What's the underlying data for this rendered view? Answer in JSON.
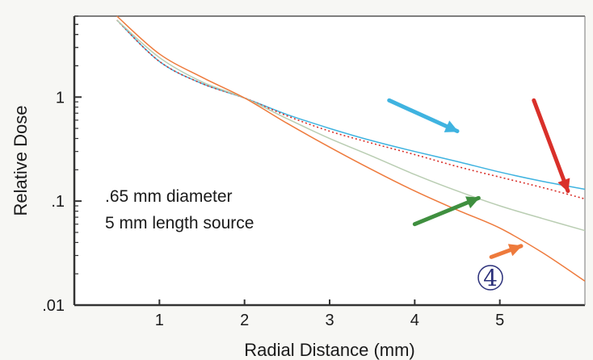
{
  "chart_data": {
    "type": "line",
    "xlabel": "Radial Distance (mm)",
    "ylabel": "Relative Dose",
    "xlim": [
      0,
      6
    ],
    "ylim": [
      0.01,
      6
    ],
    "yscale": "log",
    "x_ticks": [
      1,
      2,
      3,
      4,
      5
    ],
    "x_tick_labels": [
      "1",
      "2",
      "3",
      "4",
      "5"
    ],
    "y_ticks": [
      1,
      0.1,
      0.01
    ],
    "y_tick_labels": [
      "1",
      ".1",
      ".01"
    ],
    "grid": false,
    "annotations": [
      {
        "text": ".65 mm diameter"
      },
      {
        "text": "5 mm length source"
      },
      {
        "text": "4"
      }
    ],
    "series": [
      {
        "color": "#3fb3e0",
        "style": "solid",
        "points": [
          [
            0.5,
            5.5
          ],
          [
            1.0,
            2.2
          ],
          [
            1.5,
            1.35
          ],
          [
            2.0,
            0.98
          ],
          [
            2.5,
            0.68
          ],
          [
            3.0,
            0.5
          ],
          [
            3.5,
            0.38
          ],
          [
            4.0,
            0.3
          ],
          [
            4.5,
            0.24
          ],
          [
            5.0,
            0.19
          ],
          [
            5.5,
            0.155
          ],
          [
            6.0,
            0.13
          ]
        ]
      },
      {
        "color": "#d9302a",
        "style": "dotted",
        "points": [
          [
            0.5,
            5.5
          ],
          [
            1.0,
            2.2
          ],
          [
            1.5,
            1.35
          ],
          [
            2.0,
            0.98
          ],
          [
            2.5,
            0.66
          ],
          [
            3.0,
            0.47
          ],
          [
            3.5,
            0.36
          ],
          [
            4.0,
            0.28
          ],
          [
            4.5,
            0.215
          ],
          [
            5.0,
            0.17
          ],
          [
            5.5,
            0.135
          ],
          [
            6.0,
            0.105
          ]
        ]
      },
      {
        "color": "#b9cdb2",
        "style": "solid",
        "points": [
          [
            0.5,
            5.5
          ],
          [
            1.0,
            2.4
          ],
          [
            1.5,
            1.4
          ],
          [
            2.0,
            0.98
          ],
          [
            2.5,
            0.62
          ],
          [
            3.0,
            0.4
          ],
          [
            3.5,
            0.27
          ],
          [
            4.0,
            0.18
          ],
          [
            4.5,
            0.125
          ],
          [
            5.0,
            0.09
          ],
          [
            5.5,
            0.068
          ],
          [
            6.0,
            0.052
          ]
        ]
      },
      {
        "color": "#ee7a3c",
        "style": "solid",
        "points": [
          [
            0.5,
            6.0
          ],
          [
            1.0,
            2.6
          ],
          [
            1.5,
            1.55
          ],
          [
            2.0,
            0.98
          ],
          [
            2.5,
            0.56
          ],
          [
            3.0,
            0.33
          ],
          [
            3.5,
            0.2
          ],
          [
            4.0,
            0.125
          ],
          [
            4.5,
            0.082
          ],
          [
            5.0,
            0.055
          ],
          [
            5.5,
            0.032
          ],
          [
            6.0,
            0.017
          ]
        ]
      }
    ],
    "arrows": [
      {
        "color": "#3fb3e0",
        "from": [
          3.7,
          0.93
        ],
        "to": [
          4.5,
          0.47
        ]
      },
      {
        "color": "#d9302a",
        "from": [
          5.4,
          0.93
        ],
        "to": [
          5.8,
          0.125
        ]
      },
      {
        "color": "#3f8f3f",
        "from": [
          4.0,
          0.06
        ],
        "to": [
          4.75,
          0.107
        ]
      },
      {
        "color": "#ee7a3c",
        "from": [
          4.9,
          0.029
        ],
        "to": [
          5.25,
          0.037
        ]
      }
    ]
  }
}
